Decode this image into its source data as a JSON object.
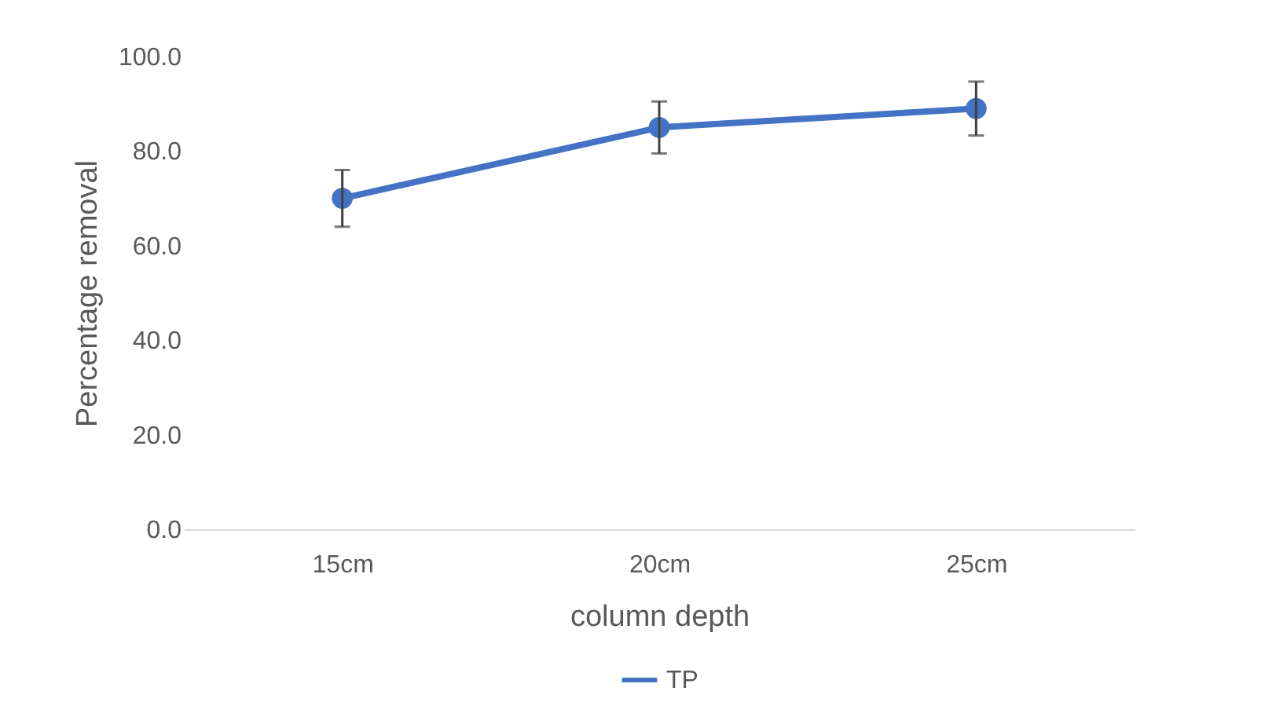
{
  "chart_data": {
    "type": "line",
    "xlabel": "column depth",
    "ylabel": "Percentage removal",
    "categories": [
      "15cm",
      "20cm",
      "25cm"
    ],
    "series": [
      {
        "name": "TP",
        "color": "#4472c4",
        "values": [
          70,
          85,
          89
        ],
        "errors": [
          6,
          5.5,
          5.7
        ]
      }
    ],
    "ylim": [
      0,
      100
    ],
    "yticks": [
      {
        "value": 0,
        "label": "0.0"
      },
      {
        "value": 20,
        "label": "20.0"
      },
      {
        "value": 40,
        "label": "40.0"
      },
      {
        "value": 60,
        "label": "60.0"
      },
      {
        "value": 80,
        "label": "80.0"
      },
      {
        "value": 100,
        "label": "100.0"
      }
    ],
    "grid": false,
    "legend": "bottom",
    "marker": "circle",
    "line_style": "solid"
  }
}
